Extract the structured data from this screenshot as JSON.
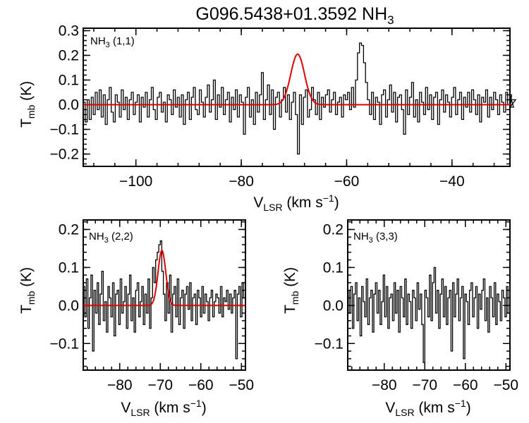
{
  "colors": {
    "spectrum": "#000000",
    "fit": "#e00000"
  },
  "chart_data": [
    {
      "type": "line",
      "title_main": "G096.5438+01.3592 NH",
      "title_sub": "3",
      "annotation_main": "NH",
      "annotation_sub": "3",
      "annotation_rest": " (1,1)",
      "xlabel_main": "V",
      "xlabel_sub": "LSR",
      "xlabel_rest": " (km s",
      "xlabel_sup": "−1",
      "xlabel_end": ")",
      "ylabel_main": "T",
      "ylabel_sub": "mb",
      "ylabel_rest": " (K)",
      "xlim": [
        -110,
        -29
      ],
      "ylim": [
        -0.25,
        0.31
      ],
      "xticks": [
        -100,
        -80,
        -60,
        -40
      ],
      "xtick_labels": [
        "−100",
        "−80",
        "−60",
        "−40"
      ],
      "yticks": [
        -0.2,
        -0.1,
        0.0,
        0.1,
        0.2,
        0.3
      ],
      "ytick_labels": [
        "−0.2",
        "−0.1",
        "0.0",
        "0.1",
        "0.2",
        "0.3"
      ],
      "series": [
        {
          "name": "observed",
          "style": "steps",
          "x_start": -110,
          "x_step": 0.38,
          "values": [
            0.01,
            -0.07,
            0.02,
            -0.06,
            0.03,
            -0.04,
            0.05,
            -0.02,
            0.06,
            -0.05,
            0.04,
            -0.08,
            0.02,
            0.07,
            -0.03,
            -0.07,
            0.04,
            0.01,
            -0.05,
            0.06,
            -0.02,
            0.03,
            -0.06,
            0.02,
            0.05,
            -0.04,
            0.01,
            0.04,
            -0.07,
            0.03,
            -0.01,
            0.05,
            -0.05,
            0.02,
            0.07,
            -0.02,
            -0.06,
            0.03,
            0.05,
            -0.03,
            0.01,
            -0.07,
            0.04,
            0.02,
            -0.04,
            0.06,
            -0.01,
            0.03,
            -0.05,
            0.04,
            -0.08,
            0.02,
            0.05,
            -0.06,
            0.03,
            0.07,
            -0.02,
            -0.04,
            0.06,
            0.01,
            -0.05,
            0.03,
            0.08,
            -0.03,
            0.02,
            0.1,
            -0.06,
            0.04,
            -0.01,
            0.07,
            -0.04,
            0.02,
            0.05,
            -0.07,
            0.03,
            -0.02,
            0.06,
            -0.05,
            0.04,
            0.01,
            -0.12,
            0.03,
            0.07,
            -0.05,
            0.02,
            -0.08,
            0.05,
            -0.03,
            0.04,
            0.13,
            -0.06,
            0.02,
            0.08,
            -0.04,
            0.06,
            -0.1,
            0.03,
            0.05,
            -0.05,
            0.02,
            0.07,
            -0.03,
            0.04,
            -0.06,
            0.01,
            0.05,
            -0.04,
            -0.2,
            0.04,
            -0.08,
            0.03,
            0.06,
            -0.05,
            -0.02,
            0.07,
            0.02,
            -0.04,
            0.05,
            -0.06,
            0.03,
            -0.01,
            0.04,
            0.06,
            -0.03,
            0.02,
            0.05,
            -0.04,
            0.01,
            0.03,
            -0.05,
            0.04,
            0.02,
            0.05,
            -0.02,
            0.07,
            -0.01,
            0.1,
            0.21,
            0.25,
            0.24,
            0.17,
            0.09,
            0.02,
            -0.04,
            0.05,
            -0.06,
            0.03,
            0.01,
            -0.08,
            0.04,
            0.06,
            -0.05,
            0.02,
            0.08,
            -0.03,
            0.05,
            -0.07,
            0.03,
            0.04,
            -0.02,
            -0.12,
            0.06,
            -0.04,
            0.03,
            0.09,
            -0.05,
            0.02,
            -0.07,
            0.05,
            0.01,
            -0.04,
            0.07,
            -0.02,
            0.04,
            -0.06,
            0.03,
            0.05,
            -0.08,
            0.02,
            0.06,
            -0.03,
            0.04,
            0.01,
            -0.05,
            0.03,
            0.07,
            -0.04,
            0.02,
            0.05,
            -0.06,
            0.03,
            -0.01,
            0.05,
            -0.03,
            0.06,
            0.02,
            -0.04,
            0.04,
            -0.07,
            0.03,
            0.01,
            0.06,
            -0.05,
            0.03,
            -0.02,
            0.05,
            0.02,
            -0.04,
            0.04,
            0.01,
            -0.03,
            0.05,
            0.0,
            -0.02,
            0.04,
            -0.01,
            0.02
          ]
        },
        {
          "name": "gaussian fit",
          "style": "gauss",
          "amplitude": 0.205,
          "center": -69.3,
          "sigma": 1.3
        }
      ]
    },
    {
      "type": "line",
      "annotation_main": "NH",
      "annotation_sub": "3",
      "annotation_rest": " (2,2)",
      "xlabel_main": "V",
      "xlabel_sub": "LSR",
      "xlabel_rest": " (km s",
      "xlabel_sup": "−1",
      "xlabel_end": ")",
      "ylabel_main": "T",
      "ylabel_sub": "mb",
      "ylabel_rest": " (K)",
      "xlim": [
        -89,
        -49
      ],
      "ylim": [
        -0.17,
        0.225
      ],
      "xticks": [
        -80,
        -70,
        -60,
        -50
      ],
      "xtick_labels": [
        "−80",
        "−70",
        "−60",
        "−50"
      ],
      "yticks": [
        -0.1,
        0.0,
        0.1,
        0.2
      ],
      "ytick_labels": [
        "−0.1",
        "0.0",
        "0.1",
        "0.2"
      ],
      "series": [
        {
          "name": "observed",
          "style": "steps",
          "x_start": -89,
          "x_step": 0.38,
          "values": [
            0.05,
            -0.03,
            0.07,
            -0.06,
            0.02,
            0.08,
            -0.12,
            0.04,
            -0.02,
            0.06,
            -0.05,
            0.03,
            0.09,
            -0.04,
            0.01,
            -0.07,
            0.05,
            0.02,
            -0.03,
            0.06,
            -0.08,
            0.03,
            0.04,
            -0.05,
            0.07,
            -0.02,
            0.01,
            0.05,
            -0.06,
            0.03,
            0.08,
            -0.04,
            0.02,
            -0.07,
            0.04,
            0.06,
            -0.03,
            0.01,
            0.05,
            -0.05,
            0.03,
            -0.02,
            0.07,
            -0.06,
            0.02,
            0.1,
            0.06,
            0.12,
            0.14,
            0.16,
            0.17,
            0.09,
            0.03,
            -0.04,
            0.06,
            -0.02,
            0.08,
            -0.07,
            0.03,
            0.05,
            -0.03,
            0.07,
            -0.05,
            0.02,
            0.04,
            -0.06,
            0.03,
            0.05,
            -0.01,
            0.06,
            -0.04,
            0.02,
            0.03,
            -0.05,
            0.04,
            0.02,
            -0.03,
            0.05,
            -0.02,
            0.03,
            0.01,
            -0.04,
            0.02,
            0.04,
            -0.03,
            0.01,
            0.03,
            0.02,
            -0.02,
            0.05,
            -0.03,
            0.02,
            0.01,
            0.04,
            -0.01,
            0.03,
            -0.02,
            0.02,
            0.04,
            -0.14,
            0.03,
            0.05,
            -0.03,
            0.06,
            0.02
          ]
        },
        {
          "name": "gaussian fit",
          "style": "gauss",
          "amplitude": 0.145,
          "center": -69.6,
          "sigma": 0.95
        }
      ]
    },
    {
      "type": "line",
      "annotation_main": "NH",
      "annotation_sub": "3",
      "annotation_rest": " (3,3)",
      "xlabel_main": "V",
      "xlabel_sub": "LSR",
      "xlabel_rest": " (km s",
      "xlabel_sup": "−1",
      "xlabel_end": ")",
      "ylabel_main": "T",
      "ylabel_sub": "mb",
      "ylabel_rest": " (K)",
      "xlim": [
        -89,
        -49
      ],
      "ylim": [
        -0.17,
        0.225
      ],
      "xticks": [
        -80,
        -70,
        -60,
        -50
      ],
      "xtick_labels": [
        "−80",
        "−70",
        "−60",
        "−50"
      ],
      "yticks": [
        -0.1,
        0.0,
        0.1,
        0.2
      ],
      "ytick_labels": [
        "−0.1",
        "0.0",
        "0.1",
        "0.2"
      ],
      "series": [
        {
          "name": "observed",
          "style": "steps",
          "x_start": -89,
          "x_step": 0.38,
          "values": [
            0.04,
            -0.02,
            0.05,
            -0.06,
            0.03,
            0.06,
            -0.04,
            0.02,
            -0.08,
            0.05,
            0.01,
            -0.03,
            0.07,
            -0.05,
            0.02,
            0.04,
            -0.07,
            0.03,
            0.06,
            -0.02,
            0.04,
            -0.05,
            0.01,
            0.08,
            -0.03,
            0.05,
            -0.06,
            0.02,
            0.03,
            -0.04,
            0.06,
            -0.02,
            0.04,
            -0.07,
            0.05,
            0.02,
            -0.03,
            0.07,
            -0.05,
            0.03,
            0.01,
            -0.06,
            0.04,
            0.02,
            -0.04,
            0.06,
            -0.01,
            0.03,
            -0.05,
            -0.15,
            0.04,
            0.02,
            -0.03,
            0.08,
            -0.04,
            0.06,
            0.1,
            -0.02,
            0.04,
            -0.06,
            0.03,
            0.07,
            -0.03,
            0.05,
            -0.05,
            0.02,
            0.04,
            -0.12,
            0.06,
            -0.03,
            0.03,
            0.07,
            -0.04,
            0.02,
            0.05,
            -0.14,
            0.03,
            0.01,
            -0.05,
            0.04,
            0.06,
            -0.03,
            0.02,
            0.05,
            -0.06,
            0.03,
            -0.01,
            0.04,
            0.07,
            -0.04,
            0.02,
            -0.07,
            0.05,
            0.02,
            -0.03,
            0.06,
            -0.05,
            0.03,
            0.01,
            -0.04,
            0.04,
            0.02,
            -0.03,
            0.05,
            -0.02
          ]
        }
      ]
    }
  ]
}
